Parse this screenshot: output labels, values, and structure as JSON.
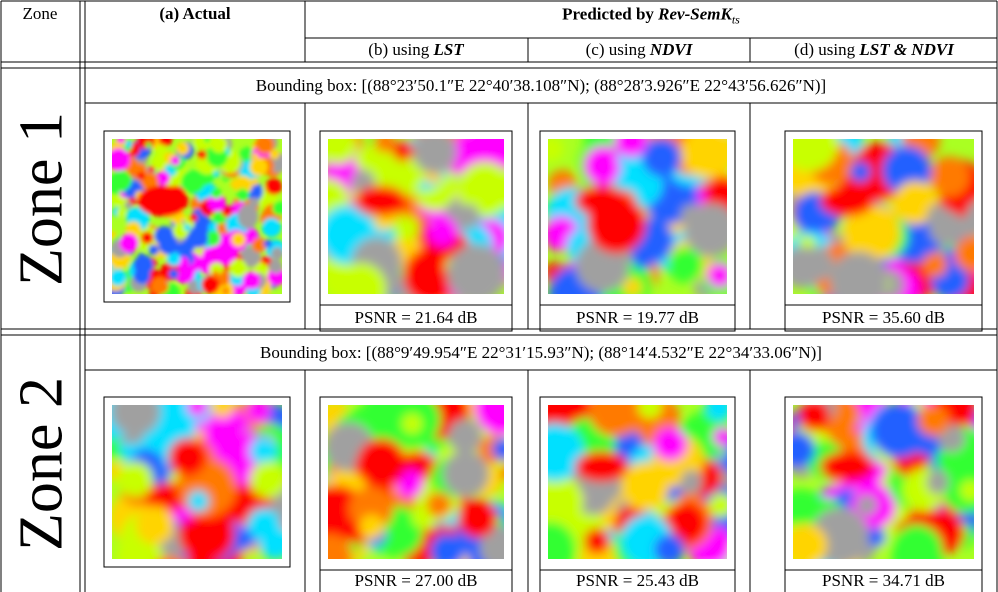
{
  "header": {
    "zone": "Zone",
    "actual": "(a) Actual",
    "predicted": {
      "prefix": "Predicted by",
      "model": "Rev-SemK",
      "subscript": "ts"
    },
    "methods": [
      {
        "label": "(b) using",
        "input": "LST"
      },
      {
        "label": "(c) using",
        "input": "NDVI"
      },
      {
        "label": "(d) using",
        "input": "LST & NDVI"
      }
    ]
  },
  "zones": [
    {
      "name": "Zone 1",
      "bounding_box": "Bounding box: [(88°23′50.1″E 22°40′38.108″N); (88°28′3.926″E 22°43′56.626″N)]",
      "psnr": [
        "PSNR = 21.64 dB",
        "PSNR = 19.77 dB",
        "PSNR = 35.60 dB"
      ]
    },
    {
      "name": "Zone 2",
      "bounding_box": "Bounding box: [(88°9′49.954″E 22°31′15.93″N); (88°14′4.532″E 22°34′33.06″N)]",
      "psnr": [
        "PSNR = 27.00 dB",
        "PSNR = 25.43 dB",
        "PSNR = 34.71 dB"
      ]
    }
  ]
}
